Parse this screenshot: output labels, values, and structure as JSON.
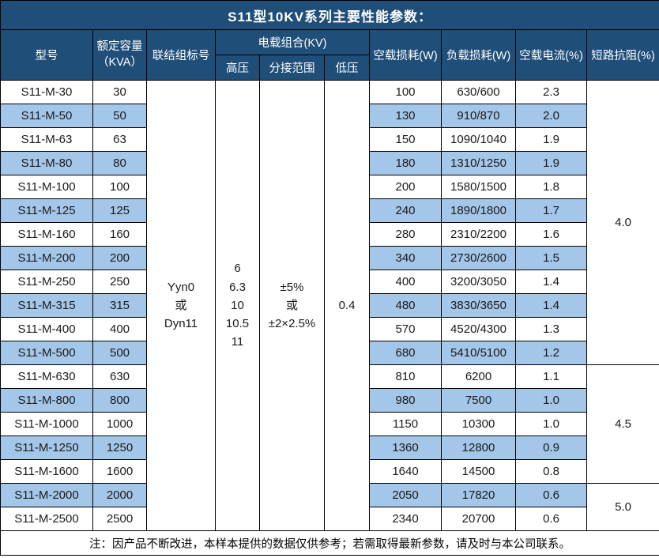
{
  "title": "S11型10KV系列主要性能参数：",
  "colors": {
    "header_bg": "#1F4E79",
    "stripe_bg": "#A4C6E9",
    "border": "#000000",
    "header_text": "#FFFFFF",
    "body_text": "#1A1A1A"
  },
  "header": {
    "model": "型号",
    "capacity_lines": [
      "额定容量",
      "（KVA）"
    ],
    "connection": "联结组标号",
    "load_combo": "电载组合(KV)",
    "hv": "高压",
    "tap": "分接范围",
    "lv": "低压",
    "no_load_loss": "空载损耗(W)",
    "load_loss": "负载损耗(W)",
    "no_load_current": "空载电流(%)",
    "impedance": "短路抗阻(%)"
  },
  "merged": {
    "connection_lines": [
      "Yyn0",
      "或",
      "Dyn11"
    ],
    "hv_lines": [
      "6",
      "6.3",
      "10",
      "10.5",
      "11"
    ],
    "tap_lines": [
      "±5%",
      "或",
      "±2×2.5%"
    ],
    "lv": "0.4"
  },
  "rows": [
    {
      "model": "S11-M-30",
      "kva": "30",
      "no_load_loss": "100",
      "load_loss": "630/600",
      "no_load_current": "2.3",
      "striped": false
    },
    {
      "model": "S11-M-50",
      "kva": "50",
      "no_load_loss": "130",
      "load_loss": "910/870",
      "no_load_current": "2.0",
      "striped": true
    },
    {
      "model": "S11-M-63",
      "kva": "63",
      "no_load_loss": "150",
      "load_loss": "1090/1040",
      "no_load_current": "1.9",
      "striped": false
    },
    {
      "model": "S11-M-80",
      "kva": "80",
      "no_load_loss": "180",
      "load_loss": "1310/1250",
      "no_load_current": "1.9",
      "striped": true
    },
    {
      "model": "S11-M-100",
      "kva": "100",
      "no_load_loss": "200",
      "load_loss": "1580/1500",
      "no_load_current": "1.8",
      "striped": false
    },
    {
      "model": "S11-M-125",
      "kva": "125",
      "no_load_loss": "240",
      "load_loss": "1890/1800",
      "no_load_current": "1.7",
      "striped": true
    },
    {
      "model": "S11-M-160",
      "kva": "160",
      "no_load_loss": "280",
      "load_loss": "2310/2200",
      "no_load_current": "1.6",
      "striped": false
    },
    {
      "model": "S11-M-200",
      "kva": "200",
      "no_load_loss": "340",
      "load_loss": "2730/2600",
      "no_load_current": "1.5",
      "striped": true
    },
    {
      "model": "S11-M-250",
      "kva": "250",
      "no_load_loss": "400",
      "load_loss": "3200/3050",
      "no_load_current": "1.4",
      "striped": false
    },
    {
      "model": "S11-M-315",
      "kva": "315",
      "no_load_loss": "480",
      "load_loss": "3830/3650",
      "no_load_current": "1.4",
      "striped": true
    },
    {
      "model": "S11-M-400",
      "kva": "400",
      "no_load_loss": "570",
      "load_loss": "4520/4300",
      "no_load_current": "1.3",
      "striped": false
    },
    {
      "model": "S11-M-500",
      "kva": "500",
      "no_load_loss": "680",
      "load_loss": "5410/5100",
      "no_load_current": "1.2",
      "striped": true
    },
    {
      "model": "S11-M-630",
      "kva": "630",
      "no_load_loss": "810",
      "load_loss": "6200",
      "no_load_current": "1.1",
      "striped": false
    },
    {
      "model": "S11-M-800",
      "kva": "800",
      "no_load_loss": "980",
      "load_loss": "7500",
      "no_load_current": "1.0",
      "striped": true
    },
    {
      "model": "S11-M-1000",
      "kva": "1000",
      "no_load_loss": "1150",
      "load_loss": "10300",
      "no_load_current": "1.0",
      "striped": false
    },
    {
      "model": "S11-M-1250",
      "kva": "1250",
      "no_load_loss": "1360",
      "load_loss": "12800",
      "no_load_current": "0.9",
      "striped": true
    },
    {
      "model": "S11-M-1600",
      "kva": "1600",
      "no_load_loss": "1640",
      "load_loss": "14500",
      "no_load_current": "0.8",
      "striped": false
    },
    {
      "model": "S11-M-2000",
      "kva": "2000",
      "no_load_loss": "2050",
      "load_loss": "17820",
      "no_load_current": "0.6",
      "striped": true
    },
    {
      "model": "S11-M-2500",
      "kva": "2500",
      "no_load_loss": "2340",
      "load_loss": "20700",
      "no_load_current": "0.6",
      "striped": false
    }
  ],
  "impedance_groups": [
    {
      "value": "4.0",
      "span": 12
    },
    {
      "value": "4.5",
      "span": 5
    },
    {
      "value": "5.0",
      "span": 2
    }
  ],
  "note": "注：因产品不断改进，本样本提供的数据仅供参考；若需取得最新参数，请及时与本公司联系。"
}
